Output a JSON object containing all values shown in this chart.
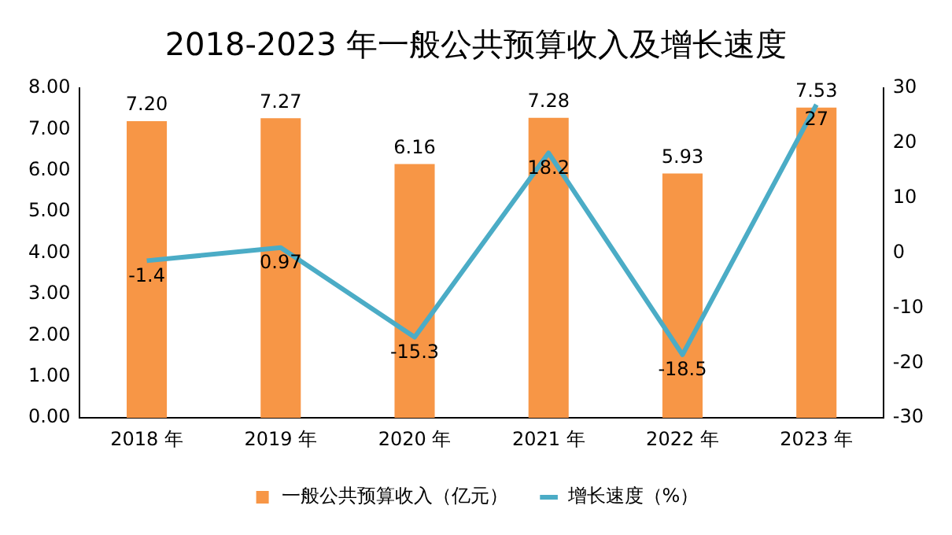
{
  "chart_data": {
    "type": "bar",
    "title": "2018-2023 年一般公共预算收入及增长速度",
    "categories": [
      "2018 年",
      "2019 年",
      "2020 年",
      "2021 年",
      "2022 年",
      "2023 年"
    ],
    "series": [
      {
        "name": "一般公共预算收入（亿元）",
        "color": "#f79646",
        "values": [
          7.2,
          7.27,
          6.16,
          7.28,
          5.93,
          7.53
        ],
        "value_labels": [
          "7.20",
          "7.27",
          "6.16",
          "7.28",
          "5.93",
          "7.53"
        ]
      },
      {
        "name": "增长速度（%）",
        "type": "line",
        "axis": "y2",
        "color": "#4bacc6",
        "values": [
          -1.4,
          0.97,
          -15.3,
          18.2,
          -18.5,
          27
        ],
        "value_labels": [
          "-1.4",
          "0.97",
          "-15.3",
          "18.2",
          "-18.5",
          "27"
        ]
      }
    ],
    "ylim": [
      0,
      8
    ],
    "yticks": [
      {
        "value": 0,
        "label": "0.00"
      },
      {
        "value": 1,
        "label": "1.00"
      },
      {
        "value": 2,
        "label": "2.00"
      },
      {
        "value": 3,
        "label": "3.00"
      },
      {
        "value": 4,
        "label": "4.00"
      },
      {
        "value": 5,
        "label": "5.00"
      },
      {
        "value": 6,
        "label": "6.00"
      },
      {
        "value": 7,
        "label": "7.00"
      },
      {
        "value": 8,
        "label": "8.00"
      }
    ],
    "y2lim": [
      -30,
      30
    ],
    "y2ticks": [
      -30,
      -20,
      -10,
      0,
      10,
      20,
      30
    ],
    "grid": false,
    "legend": "bottom",
    "marker": "none",
    "line_style": "solid"
  }
}
